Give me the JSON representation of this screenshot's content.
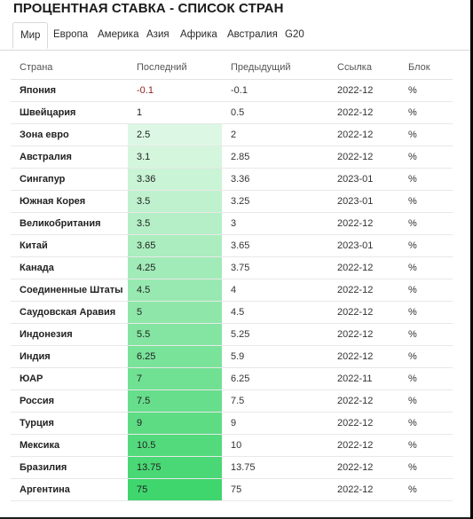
{
  "page": {
    "title": "ПРОЦЕНТНАЯ СТАВКА - СПИСОК СТРАН"
  },
  "tabs": [
    {
      "label": "Мир",
      "active": true
    },
    {
      "label": "Европа",
      "active": false
    },
    {
      "label": "Америка",
      "active": false
    },
    {
      "label": "Азия",
      "active": false
    },
    {
      "label": "Африка",
      "active": false
    },
    {
      "label": "Австралия",
      "active": false
    },
    {
      "label": "G20",
      "active": false
    }
  ],
  "table": {
    "headers": [
      "Страна",
      "Последний",
      "Предыдущий",
      "Ссылка",
      "Блок"
    ],
    "rows": [
      {
        "country": "Япония",
        "last": "-0.1",
        "previous": "-0.1",
        "reference": "2022-12",
        "unit": "%"
      },
      {
        "country": "Швейцария",
        "last": "1",
        "previous": "0.5",
        "reference": "2022-12",
        "unit": "%"
      },
      {
        "country": "Зона евро",
        "last": "2.5",
        "previous": "2",
        "reference": "2022-12",
        "unit": "%"
      },
      {
        "country": "Австралия",
        "last": "3.1",
        "previous": "2.85",
        "reference": "2022-12",
        "unit": "%"
      },
      {
        "country": "Сингапур",
        "last": "3.36",
        "previous": "3.36",
        "reference": "2023-01",
        "unit": "%"
      },
      {
        "country": "Южная Корея",
        "last": "3.5",
        "previous": "3.25",
        "reference": "2023-01",
        "unit": "%"
      },
      {
        "country": "Великобритания",
        "last": "3.5",
        "previous": "3",
        "reference": "2022-12",
        "unit": "%"
      },
      {
        "country": "Китай",
        "last": "3.65",
        "previous": "3.65",
        "reference": "2023-01",
        "unit": "%"
      },
      {
        "country": "Канада",
        "last": "4.25",
        "previous": "3.75",
        "reference": "2022-12",
        "unit": "%"
      },
      {
        "country": "Соединенные Штаты",
        "last": "4.5",
        "previous": "4",
        "reference": "2022-12",
        "unit": "%"
      },
      {
        "country": "Саудовская Аравия",
        "last": "5",
        "previous": "4.5",
        "reference": "2022-12",
        "unit": "%"
      },
      {
        "country": "Индонезия",
        "last": "5.5",
        "previous": "5.25",
        "reference": "2022-12",
        "unit": "%"
      },
      {
        "country": "Индия",
        "last": "6.25",
        "previous": "5.9",
        "reference": "2022-12",
        "unit": "%"
      },
      {
        "country": "ЮАР",
        "last": "7",
        "previous": "6.25",
        "reference": "2022-11",
        "unit": "%"
      },
      {
        "country": "Россия",
        "last": "7.5",
        "previous": "7.5",
        "reference": "2022-12",
        "unit": "%"
      },
      {
        "country": "Турция",
        "last": "9",
        "previous": "9",
        "reference": "2022-12",
        "unit": "%"
      },
      {
        "country": "Мексика",
        "last": "10.5",
        "previous": "10",
        "reference": "2022-12",
        "unit": "%"
      },
      {
        "country": "Бразилия",
        "last": "13.75",
        "previous": "13.75",
        "reference": "2022-12",
        "unit": "%"
      },
      {
        "country": "Аргентина",
        "last": "75",
        "previous": "75",
        "reference": "2022-12",
        "unit": "%"
      }
    ]
  },
  "colors": {
    "heat_light": "#f0fcf3",
    "heat_dark": "#3fd66e",
    "negative_text": "#8b1d1d"
  }
}
